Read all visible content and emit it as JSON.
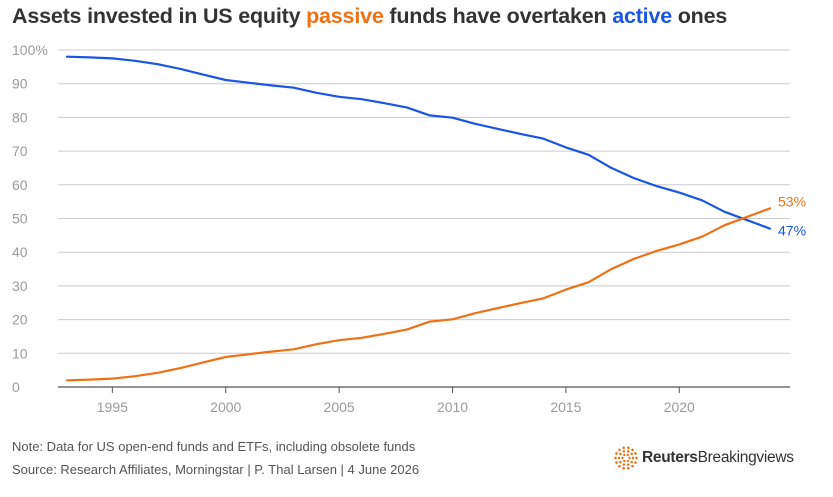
{
  "title": {
    "prefix": "Assets invested in US equity ",
    "highlight_passive": "passive",
    "middle": " funds have overtaken ",
    "highlight_active": "active",
    "suffix": " ones"
  },
  "colors": {
    "passive": "#f07114",
    "active": "#1a55e3",
    "grid": "#cccccc",
    "axis": "#555555",
    "tick_text": "#9a9a9a"
  },
  "chart_data": {
    "type": "line",
    "x": [
      1993,
      1994,
      1995,
      1996,
      1997,
      1998,
      1999,
      2000,
      2001,
      2002,
      2003,
      2004,
      2005,
      2006,
      2007,
      2008,
      2009,
      2010,
      2011,
      2012,
      2013,
      2014,
      2015,
      2016,
      2017,
      2018,
      2019,
      2020,
      2021,
      2022,
      2023,
      2024
    ],
    "series": [
      {
        "key": "active",
        "values": [
          98,
          97.8,
          97.5,
          96.8,
          95.8,
          94.4,
          92.7,
          91.1,
          90.3,
          89.5,
          88.8,
          87.3,
          86.1,
          85.4,
          84.2,
          82.9,
          80.6,
          79.9,
          78.1,
          76.6,
          75.1,
          73.7,
          71.1,
          68.9,
          65,
          62,
          59.6,
          57.7,
          55.4,
          52,
          49.5,
          47
        ],
        "end_label": "47%"
      },
      {
        "key": "passive",
        "values": [
          2,
          2.2,
          2.5,
          3.2,
          4.2,
          5.6,
          7.3,
          8.9,
          9.7,
          10.5,
          11.2,
          12.7,
          13.9,
          14.6,
          15.8,
          17.1,
          19.4,
          20.1,
          21.9,
          23.4,
          24.9,
          26.3,
          28.9,
          31.1,
          35,
          38,
          40.4,
          42.3,
          44.6,
          48,
          50.5,
          53
        ],
        "end_label": "53%"
      }
    ],
    "y_ticks": [
      "0",
      "10",
      "20",
      "30",
      "40",
      "50",
      "60",
      "70",
      "80",
      "90",
      "100%"
    ],
    "y_tick_values": [
      0,
      10,
      20,
      30,
      40,
      50,
      60,
      70,
      80,
      90,
      100
    ],
    "x_ticks": [
      "1995",
      "2000",
      "2005",
      "2010",
      "2015",
      "2020"
    ],
    "x_tick_values": [
      1995,
      2000,
      2005,
      2010,
      2015,
      2020
    ],
    "ylim": [
      0,
      100
    ],
    "xlim": [
      1992.5,
      2024
    ],
    "grid": true
  },
  "footer": {
    "note": "Note: Data for US open-end funds and ETFs, including obsolete funds",
    "source": "Source: Research Affiliates, Morningstar | P. Thal Larsen | 4 June 2026",
    "brand_reuters": "Reuters",
    "brand_bv": "Breakingviews",
    "brand_icon": "reuters-dot-logo"
  }
}
